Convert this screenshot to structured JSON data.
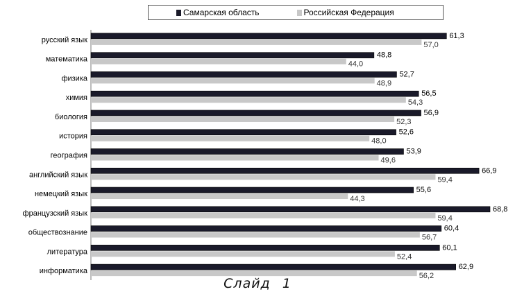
{
  "chart_data": {
    "type": "bar",
    "orientation": "horizontal",
    "categories": [
      "русский язык",
      "математика",
      "физика",
      "химия",
      "биология",
      "история",
      "география",
      "английский язык",
      "немецкий язык",
      "французский язык",
      "обществознание",
      "литература",
      "информатика"
    ],
    "series": [
      {
        "name": "Самарская область",
        "color": "#1a1a2a",
        "values": [
          61.3,
          48.8,
          52.7,
          56.5,
          56.9,
          52.6,
          53.9,
          66.9,
          55.6,
          68.8,
          60.4,
          60.1,
          62.9
        ],
        "labels": [
          "61,3",
          "48,8",
          "52,7",
          "56,5",
          "56,9",
          "52,6",
          "53,9",
          "66,9",
          "55,6",
          "68,8",
          "60,4",
          "60,1",
          "62,9"
        ]
      },
      {
        "name": "Российская Федерация",
        "color": "#c8c8c8",
        "values": [
          57.0,
          44.0,
          48.9,
          54.3,
          52.3,
          48.0,
          49.6,
          59.4,
          44.3,
          59.4,
          56.7,
          52.4,
          56.2
        ],
        "labels": [
          "57,0",
          "44,0",
          "48,9",
          "54,3",
          "52,3",
          "48,0",
          "49,6",
          "59,4",
          "44,3",
          "59,4",
          "56,7",
          "52,4",
          "56,2"
        ]
      }
    ],
    "xlim": [
      0,
      70
    ],
    "legend_position": "top",
    "grid": false
  },
  "slide_label": "Слайд 1"
}
